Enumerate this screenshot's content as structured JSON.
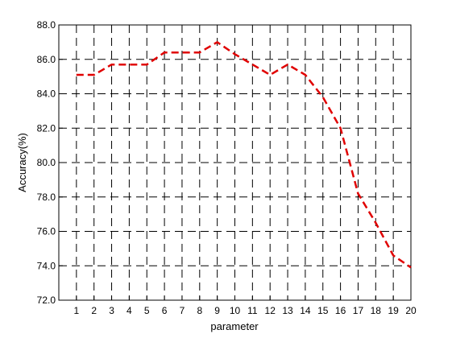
{
  "chart_data": {
    "type": "line",
    "title": "",
    "xlabel": "parameter",
    "ylabel": "Accuracy(%)",
    "x": [
      1,
      2,
      3,
      4,
      5,
      6,
      7,
      8,
      9,
      10,
      11,
      12,
      13,
      14,
      15,
      16,
      17,
      18,
      19,
      20
    ],
    "xlim": [
      0,
      20
    ],
    "ylim": [
      72,
      88
    ],
    "xticks": [
      "1",
      "2",
      "3",
      "4",
      "5",
      "6",
      "7",
      "8",
      "9",
      "10",
      "11",
      "12",
      "13",
      "14",
      "15",
      "16",
      "17",
      "18",
      "19",
      "20"
    ],
    "yticks": [
      "72.0",
      "74.0",
      "76.0",
      "78.0",
      "80.0",
      "82.0",
      "84.0",
      "86.0",
      "88.0"
    ],
    "grid": true,
    "series": [
      {
        "color": "#e00000",
        "line_style": "dashed",
        "values": [
          85.1,
          85.1,
          85.7,
          85.7,
          85.7,
          86.4,
          86.4,
          86.4,
          87.0,
          86.3,
          85.7,
          85.1,
          85.7,
          85.1,
          83.8,
          82.0,
          78.2,
          76.5,
          74.6,
          73.9
        ]
      }
    ]
  }
}
